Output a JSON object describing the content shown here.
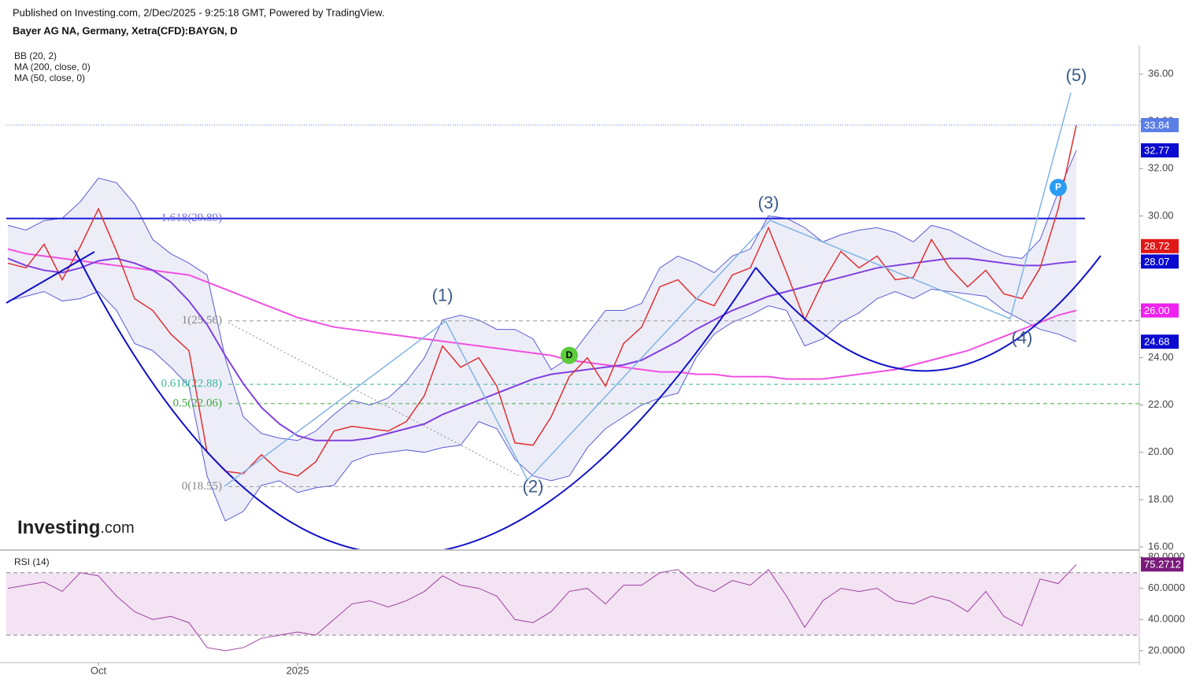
{
  "header": {
    "published": "Published on Investing.com, 2/Dec/2025 - 9:25:18 GMT, Powered by TradingView.",
    "symbol": "Bayer AG NA, Germany, Xetra(CFD):BAYGN, D",
    "logo_main": "Investing",
    "logo_suffix": ".com"
  },
  "chart_data": [
    {
      "type": "line",
      "legend": [
        "BB (20, 2)",
        "MA (200, close, 0)",
        "MA (50, close, 0)"
      ],
      "categories": [
        null,
        null,
        null,
        null,
        null,
        "Oct",
        null,
        null,
        null,
        null,
        null,
        null,
        null,
        null,
        null,
        null,
        "2025",
        null,
        null,
        null,
        null,
        null,
        null,
        null,
        null,
        null,
        null,
        null,
        null,
        null,
        null,
        null,
        null,
        null,
        null,
        null,
        null,
        null,
        null,
        null,
        null,
        null,
        null,
        null,
        null,
        null,
        null,
        null,
        null,
        null,
        null,
        null,
        null,
        null,
        null,
        null,
        null,
        null,
        null,
        null
      ],
      "ylim": [
        15.9,
        37.2
      ],
      "yticks": [
        {
          "value": 16,
          "label": "16.00"
        },
        {
          "value": 18,
          "label": "18.00"
        },
        {
          "value": 20,
          "label": "20.00"
        },
        {
          "value": 22,
          "label": "22.00"
        },
        {
          "value": 24,
          "label": "24.00"
        },
        {
          "value": 26,
          "label": "26.00"
        },
        {
          "value": 28,
          "label": "28.00"
        },
        {
          "value": 30,
          "label": "30.00"
        },
        {
          "value": 32,
          "label": "32.00"
        },
        {
          "value": 34,
          "label": "34.00"
        },
        {
          "value": 36,
          "label": "36.00"
        }
      ],
      "bands": {
        "color": "#5b5bd6",
        "fill": "#e8e8f6",
        "upper": [
          29.6,
          29.4,
          29.8,
          29.9,
          30.6,
          31.6,
          31.4,
          30.5,
          29.0,
          28.4,
          28.0,
          27.5,
          24.0,
          21.5,
          20.8,
          20.6,
          20.5,
          20.9,
          21.6,
          22.2,
          22.0,
          22.3,
          23.0,
          24.0,
          25.6,
          25.8,
          25.6,
          25.2,
          25.2,
          24.8,
          23.5,
          24.0,
          25.0,
          26.0,
          26.0,
          26.3,
          27.8,
          28.3,
          28.0,
          27.6,
          28.3,
          28.6,
          30.0,
          29.9,
          29.5,
          28.9,
          29.2,
          29.4,
          29.5,
          29.3,
          28.9,
          29.6,
          29.4,
          29.0,
          28.6,
          28.3,
          28.2,
          29.0,
          31.0,
          32.77
        ],
        "lower": [
          26.4,
          26.6,
          26.8,
          26.4,
          26.5,
          26.8,
          26.0,
          24.6,
          24.3,
          23.6,
          22.8,
          19.0,
          17.1,
          17.5,
          18.6,
          18.8,
          18.3,
          18.5,
          18.6,
          19.6,
          19.9,
          20.0,
          20.1,
          20.0,
          20.2,
          20.3,
          21.3,
          21.0,
          19.7,
          19.0,
          18.8,
          19.0,
          20.2,
          21.0,
          21.5,
          22.0,
          22.3,
          22.5,
          24.0,
          25.0,
          25.5,
          25.8,
          26.2,
          26.0,
          24.5,
          24.8,
          25.5,
          25.9,
          26.5,
          26.8,
          26.5,
          26.9,
          26.8,
          26.7,
          26.6,
          26.0,
          25.6,
          25.2,
          25.0,
          24.68
        ]
      },
      "series": [
        {
          "name": "MA (200, close, 0)",
          "color": "#f050e0",
          "width": 2,
          "values": [
            28.6,
            28.4,
            28.3,
            28.2,
            28.1,
            28.0,
            27.9,
            27.8,
            27.7,
            27.6,
            27.5,
            27.2,
            26.9,
            26.6,
            26.3,
            26.0,
            25.7,
            25.5,
            25.3,
            25.2,
            25.1,
            25.0,
            24.9,
            24.8,
            24.7,
            24.6,
            24.5,
            24.4,
            24.3,
            24.2,
            24.1,
            23.9,
            23.8,
            23.7,
            23.6,
            23.5,
            23.4,
            23.4,
            23.3,
            23.3,
            23.2,
            23.2,
            23.2,
            23.1,
            23.1,
            23.1,
            23.2,
            23.3,
            23.4,
            23.5,
            23.7,
            23.9,
            24.1,
            24.3,
            24.6,
            24.9,
            25.2,
            25.5,
            25.8,
            26.0
          ]
        },
        {
          "name": "MA (50, close, 0)",
          "color": "#8040e0",
          "width": 2,
          "values": [
            28.2,
            27.9,
            27.7,
            27.6,
            27.8,
            28.1,
            28.2,
            28.0,
            27.7,
            27.2,
            26.4,
            25.4,
            24.1,
            22.9,
            21.9,
            21.2,
            20.7,
            20.5,
            20.5,
            20.5,
            20.6,
            20.8,
            21.0,
            21.2,
            21.6,
            21.9,
            22.2,
            22.5,
            22.8,
            23.1,
            23.3,
            23.4,
            23.5,
            23.6,
            23.7,
            23.9,
            24.3,
            24.7,
            25.2,
            25.6,
            26.0,
            26.3,
            26.6,
            26.8,
            27.0,
            27.2,
            27.4,
            27.6,
            27.8,
            27.9,
            28.0,
            28.1,
            28.2,
            28.2,
            28.1,
            28.0,
            27.9,
            27.9,
            28.0,
            28.07
          ]
        },
        {
          "color": "#e03030",
          "width": 1.5,
          "values": [
            28.0,
            27.8,
            28.8,
            27.3,
            28.7,
            30.3,
            28.5,
            26.5,
            26.0,
            25.0,
            24.3,
            20.0,
            19.2,
            19.1,
            19.9,
            19.2,
            19.0,
            19.6,
            20.9,
            21.1,
            21.0,
            20.9,
            21.3,
            22.4,
            24.5,
            23.6,
            24.0,
            22.8,
            20.4,
            20.3,
            21.5,
            23.2,
            24.0,
            22.8,
            24.6,
            25.3,
            27.0,
            27.3,
            26.5,
            26.2,
            27.5,
            27.8,
            29.5,
            27.6,
            25.6,
            27.2,
            28.5,
            27.8,
            28.3,
            27.3,
            27.4,
            29.0,
            27.8,
            27.0,
            27.7,
            26.7,
            26.5,
            27.8,
            30.3,
            33.84
          ]
        }
      ],
      "levels": [
        {
          "value": 29.89,
          "label": "1.618(29.89)",
          "color": "#1a1ad6",
          "label_color": "#7070e0",
          "style": "solid"
        },
        {
          "value": 25.56,
          "label": "1(25.56)",
          "color": "#999999",
          "label_color": "#888888",
          "style": "dashed"
        },
        {
          "value": 22.88,
          "label": "0.618(22.88)",
          "color": "#3cb89c",
          "label_color": "#3cb89c",
          "style": "dashed"
        },
        {
          "value": 22.06,
          "label": "0.5(22.06)",
          "color": "#3ca83c",
          "label_color": "#3ca83c",
          "style": "dashed"
        },
        {
          "value": 18.55,
          "label": "0(18.55)",
          "color": "#999999",
          "label_color": "#888888",
          "style": "dashed"
        }
      ],
      "annotations": [
        {
          "text": "(1)",
          "x": 24,
          "y": 26.6
        },
        {
          "text": "(2)",
          "x": 29,
          "y": 18.5
        },
        {
          "text": "(3)",
          "x": 42,
          "y": 30.5
        },
        {
          "text": "(4)",
          "x": 56,
          "y": 24.8
        },
        {
          "text": "(5)",
          "x": 59,
          "y": 35.9
        }
      ],
      "markers": [
        {
          "text": "D",
          "x": 31,
          "y": 24.1,
          "color": "#5ccb3c"
        },
        {
          "text": "P",
          "x": 58,
          "y": 31.2,
          "color": "#2a9df4"
        }
      ],
      "badges": [
        {
          "value": 33.84,
          "color": "#5a7ee6"
        },
        {
          "value": 32.77,
          "color": "#0a0ad0"
        },
        {
          "value": 28.72,
          "color": "#e01818"
        },
        {
          "value": 28.07,
          "color": "#0a0ad0"
        },
        {
          "value": 26,
          "label": "26.00",
          "color": "#ee22ee"
        },
        {
          "value": 24.68,
          "color": "#0a0ad0"
        }
      ]
    },
    {
      "type": "line",
      "title": "RSI (14)",
      "ylim": [
        13.4,
        84
      ],
      "yticks": [
        {
          "value": 20,
          "label": "20.0000"
        },
        {
          "value": 40,
          "label": "40.0000"
        },
        {
          "value": 60,
          "label": "60.0000"
        },
        {
          "value": 80,
          "label": "80.0000"
        }
      ],
      "levels": [
        70,
        30
      ],
      "fill": "#f3e3f3",
      "series": [
        {
          "color": "#a040a0",
          "width": 1,
          "values": [
            60,
            62,
            64,
            58,
            70,
            68,
            55,
            45,
            40,
            42,
            38,
            22,
            20,
            22,
            28,
            30,
            32,
            30,
            40,
            50,
            52,
            48,
            52,
            58,
            68,
            62,
            60,
            55,
            40,
            38,
            45,
            58,
            60,
            50,
            62,
            62,
            70,
            72,
            62,
            58,
            65,
            62,
            72,
            55,
            35,
            52,
            60,
            58,
            60,
            52,
            50,
            55,
            52,
            45,
            58,
            42,
            36,
            66,
            63,
            75.2712
          ]
        }
      ],
      "badges": [
        {
          "value": 75.2712,
          "color": "#7a1a7a"
        }
      ]
    }
  ]
}
